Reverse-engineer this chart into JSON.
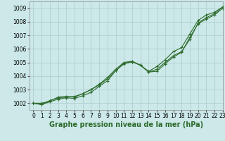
{
  "title": "Graphe pression niveau de la mer (hPa)",
  "xlim": [
    -0.5,
    23
  ],
  "ylim": [
    1001.5,
    1009.5
  ],
  "yticks": [
    1002,
    1003,
    1004,
    1005,
    1006,
    1007,
    1008,
    1009
  ],
  "xticks": [
    0,
    1,
    2,
    3,
    4,
    5,
    6,
    7,
    8,
    9,
    10,
    11,
    12,
    13,
    14,
    15,
    16,
    17,
    18,
    19,
    20,
    21,
    22,
    23
  ],
  "background_color": "#cce8e8",
  "grid_color": "#aacccc",
  "line_color": "#2d6b2d",
  "series1_y": [
    1002.0,
    1001.9,
    1002.2,
    1002.4,
    1002.45,
    1002.5,
    1002.7,
    1003.0,
    1003.4,
    1003.9,
    1004.5,
    1005.0,
    1005.1,
    1004.8,
    1004.35,
    1004.7,
    1005.2,
    1005.8,
    1006.1,
    1007.1,
    1008.1,
    1008.5,
    1008.7,
    1009.1
  ],
  "series2_y": [
    1002.0,
    1001.9,
    1002.1,
    1002.3,
    1002.4,
    1002.35,
    1002.55,
    1002.8,
    1003.25,
    1003.65,
    1004.4,
    1004.95,
    1005.05,
    1004.8,
    1004.3,
    1004.5,
    1005.0,
    1005.5,
    1005.8,
    1006.7,
    1007.9,
    1008.3,
    1008.6,
    1009.1
  ],
  "series3_y": [
    1002.0,
    1002.0,
    1002.15,
    1002.45,
    1002.5,
    1002.45,
    1002.7,
    1003.0,
    1003.35,
    1003.8,
    1004.4,
    1004.9,
    1005.05,
    1004.8,
    1004.3,
    1004.35,
    1004.9,
    1005.4,
    1005.75,
    1006.85,
    1007.85,
    1008.2,
    1008.5,
    1009.0
  ],
  "marker": "+",
  "marker_size": 3,
  "linewidth": 0.8,
  "tick_fontsize": 5.5,
  "xlabel_fontsize": 7.0,
  "xlabel_fontweight": "bold"
}
